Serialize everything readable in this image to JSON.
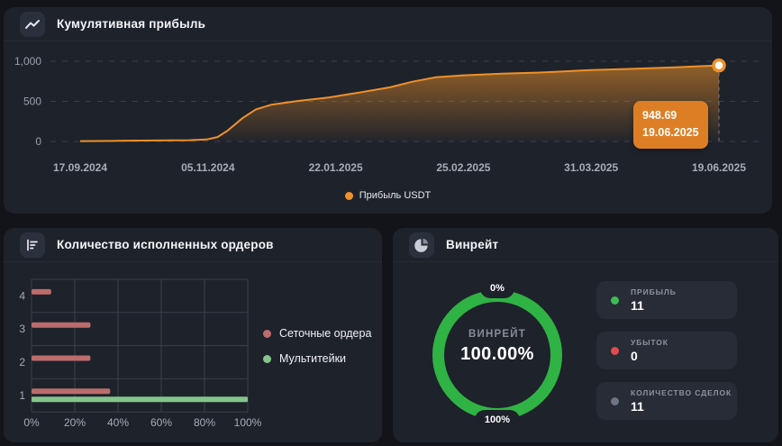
{
  "panels": {
    "cumulative": {
      "title": "Кумулятивная прибыль"
    },
    "orders": {
      "title": "Количество исполненных ордеров"
    },
    "winrate": {
      "title": "Винрейт"
    }
  },
  "colors": {
    "page_bg": "#12141a",
    "panel_bg": "#1e222b",
    "accent_orange": "#ef9127",
    "tooltip_bg": "#dd7e25",
    "bar_red": "#bc6c6c",
    "bar_green": "#85c58c",
    "donut_green": "#2fb344",
    "grid_line": "#3b404c",
    "axis_text": "#9aa1ac"
  },
  "chart_data": [
    {
      "type": "area",
      "title": "Кумулятивная прибыль",
      "series": [
        {
          "name": "Прибыль USDT",
          "color": "#ef9127"
        }
      ],
      "x_tick_labels": [
        "17.09.2024",
        "05.11.2024",
        "22.01.2025",
        "25.02.2025",
        "31.03.2025",
        "19.06.2025"
      ],
      "y_ticks": [
        0,
        500,
        1000
      ],
      "y_tick_labels": [
        "0",
        "500",
        "1,000"
      ],
      "ylim": [
        0,
        1150
      ],
      "grid": "dashed-horizontal",
      "legend_position": "bottom-center",
      "points": [
        [
          0.0,
          5
        ],
        [
          0.06,
          8
        ],
        [
          0.12,
          12
        ],
        [
          0.17,
          16
        ],
        [
          0.198,
          25
        ],
        [
          0.215,
          55
        ],
        [
          0.23,
          130
        ],
        [
          0.254,
          290
        ],
        [
          0.275,
          400
        ],
        [
          0.3,
          460
        ],
        [
          0.34,
          505
        ],
        [
          0.39,
          550
        ],
        [
          0.44,
          615
        ],
        [
          0.485,
          675
        ],
        [
          0.52,
          745
        ],
        [
          0.556,
          800
        ],
        [
          0.6,
          825
        ],
        [
          0.66,
          845
        ],
        [
          0.72,
          860
        ],
        [
          0.8,
          890
        ],
        [
          0.86,
          905
        ],
        [
          0.93,
          925
        ],
        [
          1.0,
          948.69
        ]
      ],
      "last_point": {
        "value": 948.69,
        "date": "19.06.2025"
      },
      "tooltip": {
        "value": "948.69",
        "date": "19.06.2025"
      }
    },
    {
      "type": "bar",
      "orientation": "horizontal",
      "title": "Количество исполненных ордеров",
      "categories": [
        "4",
        "3",
        "2",
        "1"
      ],
      "series": [
        {
          "name": "Сеточные ордера",
          "color": "#bc6c6c",
          "values": [
            9.09,
            27.27,
            27.27,
            36.36
          ]
        },
        {
          "name": "Мультитейки",
          "color": "#85c58c",
          "values": [
            0,
            0,
            0,
            100
          ]
        }
      ],
      "x_tick_labels": [
        "0%",
        "20%",
        "40%",
        "60%",
        "80%",
        "100%"
      ],
      "xlim": [
        0,
        100
      ],
      "grid": true,
      "legend_position": "right"
    },
    {
      "type": "donut",
      "title": "Винрейт",
      "value_pct": 100,
      "center_label": "ВИНРЕЙТ",
      "center_value": "100.00%",
      "scale_min_label": "0%",
      "scale_max_label": "100%",
      "ring_color": "#2fb344",
      "stats": [
        {
          "label": "ПРИБЫЛЬ",
          "value": "11",
          "dot_color": "#3dbb54"
        },
        {
          "label": "УБЫТОК",
          "value": "0",
          "dot_color": "#e14b4b"
        },
        {
          "label": "КОЛИЧЕСТВО СДЕЛОК",
          "value": "11",
          "dot_color": "#6e7582"
        }
      ]
    }
  ]
}
